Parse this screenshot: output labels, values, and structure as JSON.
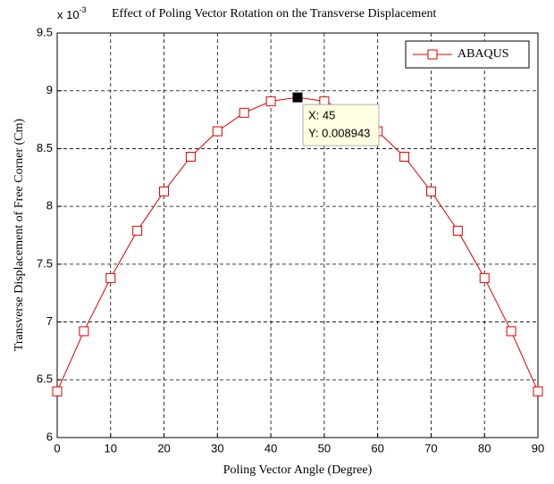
{
  "chart_data": {
    "type": "line",
    "title": "Effect of Poling Vector Rotation on the Transverse Displacement",
    "y_multiplier": {
      "base": "x 10",
      "exponent": "-3"
    },
    "x_label": "Poling Vector Angle (Degree)",
    "y_label": "Transverse Displacement of Free Corner (Cm)",
    "x": [
      0,
      5,
      10,
      15,
      20,
      25,
      30,
      35,
      40,
      45,
      50,
      55,
      60,
      65,
      70,
      75,
      80,
      85,
      90
    ],
    "series": [
      {
        "name": "ABAQUS",
        "color": "#e00000",
        "values": [
          6.4,
          6.92,
          7.38,
          7.79,
          8.13,
          8.43,
          8.65,
          8.81,
          8.91,
          8.943,
          8.91,
          8.81,
          8.65,
          8.43,
          8.13,
          7.79,
          7.38,
          6.92,
          6.4
        ]
      }
    ],
    "xlim": [
      0,
      90
    ],
    "xticks": [
      0,
      10,
      20,
      30,
      40,
      50,
      60,
      70,
      80,
      90
    ],
    "ylim": [
      6,
      9.5
    ],
    "yticks": [
      6,
      6.5,
      7,
      7.5,
      8,
      8.5,
      9,
      9.5
    ],
    "grid": true,
    "legend": "top-right",
    "datatip": {
      "x": 45,
      "label_x": "X: 45",
      "label_y": "Y: 0.008943"
    }
  }
}
